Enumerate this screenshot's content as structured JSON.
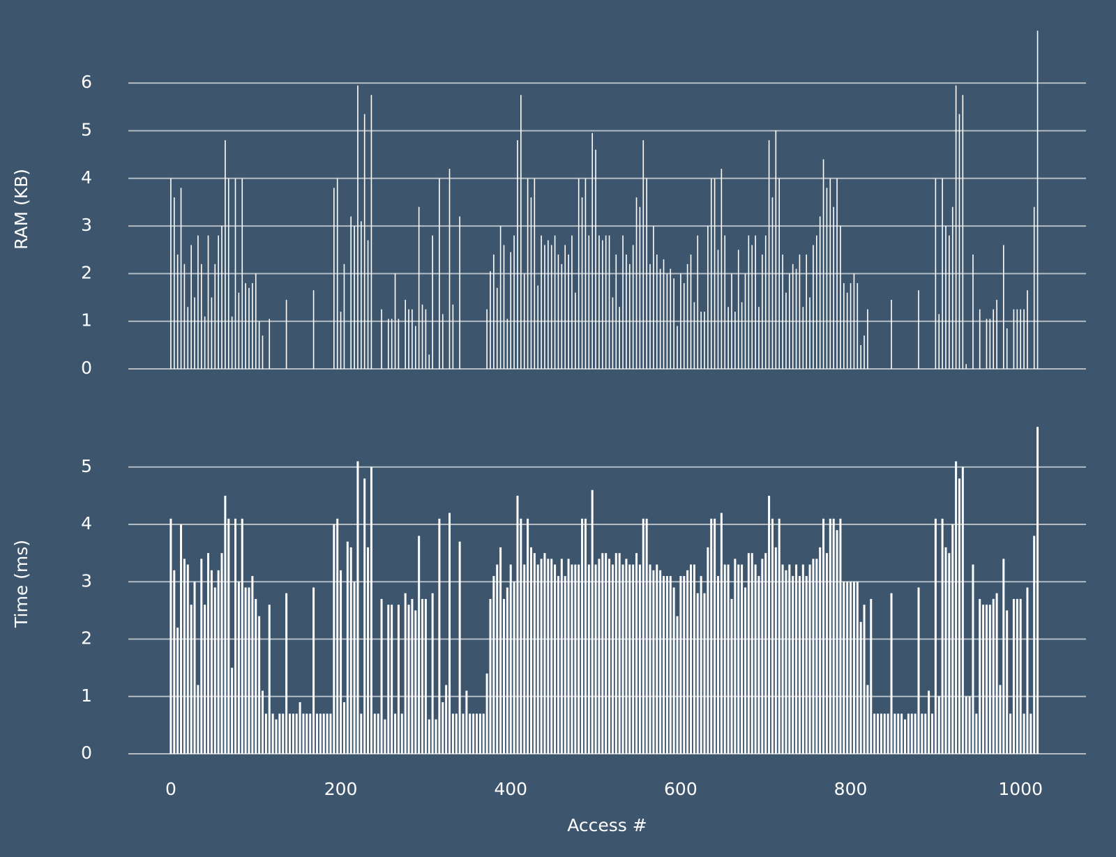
{
  "chart_data": [
    {
      "type": "bar",
      "ylabel": "RAM (KB)",
      "color": "#ffffff",
      "grid": true,
      "xlim": [
        -50,
        1077
      ],
      "ylim": [
        0,
        7.1
      ],
      "yticks": [
        0,
        1,
        2,
        3,
        4,
        5,
        6
      ],
      "x": [
        0,
        4,
        8,
        12,
        16,
        20,
        24,
        28,
        32,
        36,
        40,
        44,
        48,
        52,
        56,
        60,
        64,
        68,
        72,
        76,
        80,
        84,
        88,
        92,
        96,
        100,
        104,
        108,
        112,
        116,
        120,
        124,
        128,
        132,
        136,
        140,
        144,
        148,
        152,
        156,
        160,
        164,
        168,
        172,
        176,
        180,
        184,
        188,
        192,
        196,
        200,
        204,
        208,
        212,
        216,
        220,
        224,
        228,
        232,
        236,
        240,
        244,
        248,
        252,
        256,
        260,
        264,
        268,
        272,
        276,
        280,
        284,
        288,
        292,
        296,
        300,
        304,
        308,
        312,
        316,
        320,
        324,
        328,
        332,
        336,
        340,
        344,
        348,
        352,
        356,
        360,
        364,
        368,
        372,
        376,
        380,
        384,
        388,
        392,
        396,
        400,
        404,
        408,
        412,
        416,
        420,
        424,
        428,
        432,
        436,
        440,
        444,
        448,
        452,
        456,
        460,
        464,
        468,
        472,
        476,
        480,
        484,
        488,
        492,
        496,
        500,
        504,
        508,
        512,
        516,
        520,
        524,
        528,
        532,
        536,
        540,
        544,
        548,
        552,
        556,
        560,
        564,
        568,
        572,
        576,
        580,
        584,
        588,
        592,
        596,
        600,
        604,
        608,
        612,
        616,
        620,
        624,
        628,
        632,
        636,
        640,
        644,
        648,
        652,
        656,
        660,
        664,
        668,
        672,
        676,
        680,
        684,
        688,
        692,
        696,
        700,
        704,
        708,
        712,
        716,
        720,
        724,
        728,
        732,
        736,
        740,
        744,
        748,
        752,
        756,
        760,
        764,
        768,
        772,
        776,
        780,
        784,
        788,
        792,
        796,
        800,
        804,
        808,
        812,
        816,
        820,
        824,
        828,
        832,
        836,
        840,
        844,
        848,
        852,
        856,
        860,
        864,
        868,
        872,
        876,
        880,
        884,
        888,
        892,
        896,
        900,
        904,
        908,
        912,
        916,
        920,
        924,
        928,
        932,
        936,
        940,
        944,
        948,
        952,
        956,
        960,
        964,
        968,
        972,
        976,
        980,
        984,
        988,
        992,
        996,
        1000,
        1004,
        1008,
        1012,
        1016,
        1020
      ],
      "values": [
        4.0,
        3.6,
        2.4,
        3.8,
        2.2,
        1.3,
        2.6,
        1.5,
        2.8,
        2.2,
        1.1,
        2.8,
        1.5,
        2.2,
        2.8,
        3.0,
        4.8,
        4.0,
        1.1,
        4.0,
        1.6,
        4.0,
        1.8,
        1.7,
        1.8,
        2.0,
        1.0,
        0.7,
        0,
        1.05,
        0,
        0,
        0,
        0,
        1.45,
        0,
        0,
        0,
        0,
        0,
        0,
        0,
        1.65,
        0,
        0,
        0,
        0,
        0,
        3.8,
        4.0,
        1.2,
        2.2,
        0,
        3.2,
        3.0,
        5.95,
        3.1,
        5.35,
        2.7,
        5.75,
        0,
        0,
        1.25,
        0,
        1.05,
        1.05,
        2.0,
        1.05,
        0,
        1.45,
        1.25,
        1.25,
        0.9,
        3.4,
        1.35,
        1.25,
        0.3,
        2.8,
        0,
        4.0,
        1.15,
        0,
        4.2,
        1.35,
        0,
        3.2,
        0,
        0,
        0,
        0,
        0,
        0,
        0,
        1.25,
        2.05,
        2.4,
        1.7,
        3.0,
        2.6,
        1.05,
        2.45,
        2.8,
        4.8,
        5.75,
        2.0,
        4.0,
        3.6,
        4.0,
        1.75,
        2.8,
        2.6,
        2.7,
        2.6,
        2.8,
        2.4,
        2.2,
        2.6,
        2.4,
        2.8,
        1.6,
        4.0,
        3.6,
        4.0,
        2.8,
        4.95,
        4.6,
        2.8,
        2.7,
        2.8,
        2.8,
        1.5,
        2.4,
        1.3,
        2.8,
        2.4,
        2.2,
        2.6,
        3.6,
        3.4,
        4.8,
        4.0,
        2.2,
        3.0,
        2.4,
        2.1,
        2.3,
        2.0,
        2.1,
        1.9,
        0.9,
        2.0,
        1.8,
        2.2,
        2.4,
        1.4,
        2.8,
        1.2,
        1.2,
        3.0,
        4.0,
        4.0,
        2.5,
        4.2,
        2.8,
        1.3,
        2.0,
        1.2,
        2.5,
        1.4,
        2.0,
        2.8,
        2.6,
        2.8,
        1.3,
        2.4,
        2.8,
        4.8,
        3.6,
        5.0,
        4.0,
        2.4,
        1.6,
        2.0,
        2.2,
        2.1,
        2.4,
        1.3,
        2.4,
        1.5,
        2.6,
        2.8,
        3.2,
        4.4,
        3.8,
        4.0,
        3.4,
        4.0,
        3.0,
        1.8,
        1.6,
        1.8,
        2.0,
        1.8,
        0.5,
        0.7,
        1.25,
        0,
        0,
        0,
        0,
        0,
        0,
        1.45,
        0,
        0,
        0,
        0,
        0,
        0,
        0,
        1.65,
        0,
        0,
        0,
        0,
        4.0,
        1.15,
        4.0,
        3.0,
        2.8,
        3.4,
        5.95,
        5.35,
        5.75,
        0.1,
        0,
        2.4,
        0,
        1.25,
        0,
        1.05,
        1.05,
        1.25,
        1.45,
        0,
        2.6,
        0.85,
        0,
        1.25,
        1.25,
        1.25,
        1.25,
        1.65,
        0,
        3.4,
        7.1
      ]
    },
    {
      "type": "bar",
      "ylabel": "Time (ms)",
      "xlabel": "Access #",
      "color": "#ffffff",
      "grid": true,
      "xlim": [
        -50,
        1077
      ],
      "xticks": [
        0,
        200,
        400,
        600,
        800,
        1000
      ],
      "ylim": [
        0,
        5.8
      ],
      "yticks": [
        0,
        1,
        2,
        3,
        4,
        5
      ],
      "x": [
        0,
        4,
        8,
        12,
        16,
        20,
        24,
        28,
        32,
        36,
        40,
        44,
        48,
        52,
        56,
        60,
        64,
        68,
        72,
        76,
        80,
        84,
        88,
        92,
        96,
        100,
        104,
        108,
        112,
        116,
        120,
        124,
        128,
        132,
        136,
        140,
        144,
        148,
        152,
        156,
        160,
        164,
        168,
        172,
        176,
        180,
        184,
        188,
        192,
        196,
        200,
        204,
        208,
        212,
        216,
        220,
        224,
        228,
        232,
        236,
        240,
        244,
        248,
        252,
        256,
        260,
        264,
        268,
        272,
        276,
        280,
        284,
        288,
        292,
        296,
        300,
        304,
        308,
        312,
        316,
        320,
        324,
        328,
        332,
        336,
        340,
        344,
        348,
        352,
        356,
        360,
        364,
        368,
        372,
        376,
        380,
        384,
        388,
        392,
        396,
        400,
        404,
        408,
        412,
        416,
        420,
        424,
        428,
        432,
        436,
        440,
        444,
        448,
        452,
        456,
        460,
        464,
        468,
        472,
        476,
        480,
        484,
        488,
        492,
        496,
        500,
        504,
        508,
        512,
        516,
        520,
        524,
        528,
        532,
        536,
        540,
        544,
        548,
        552,
        556,
        560,
        564,
        568,
        572,
        576,
        580,
        584,
        588,
        592,
        596,
        600,
        604,
        608,
        612,
        616,
        620,
        624,
        628,
        632,
        636,
        640,
        644,
        648,
        652,
        656,
        660,
        664,
        668,
        672,
        676,
        680,
        684,
        688,
        692,
        696,
        700,
        704,
        708,
        712,
        716,
        720,
        724,
        728,
        732,
        736,
        740,
        744,
        748,
        752,
        756,
        760,
        764,
        768,
        772,
        776,
        780,
        784,
        788,
        792,
        796,
        800,
        804,
        808,
        812,
        816,
        820,
        824,
        828,
        832,
        836,
        840,
        844,
        848,
        852,
        856,
        860,
        864,
        868,
        872,
        876,
        880,
        884,
        888,
        892,
        896,
        900,
        904,
        908,
        912,
        916,
        920,
        924,
        928,
        932,
        936,
        940,
        944,
        948,
        952,
        956,
        960,
        964,
        968,
        972,
        976,
        980,
        984,
        988,
        992,
        996,
        1000,
        1004,
        1008,
        1012,
        1016,
        1020
      ],
      "values": [
        4.1,
        3.2,
        2.2,
        4.0,
        3.4,
        3.3,
        2.6,
        3.0,
        1.2,
        3.4,
        2.6,
        3.5,
        3.2,
        2.9,
        3.2,
        3.5,
        4.5,
        4.1,
        1.5,
        4.1,
        3.0,
        4.1,
        2.9,
        2.9,
        3.1,
        2.7,
        2.4,
        1.1,
        0.7,
        2.6,
        0.7,
        0.6,
        0.7,
        0.7,
        2.8,
        0.7,
        0.7,
        0.7,
        0.9,
        0.7,
        0.7,
        0.7,
        2.9,
        0.7,
        0.7,
        0.7,
        0.7,
        0.7,
        4.0,
        4.1,
        3.2,
        0.9,
        3.7,
        3.6,
        3.0,
        5.1,
        0.7,
        4.8,
        3.6,
        5.0,
        0.7,
        0.7,
        2.7,
        0.6,
        2.6,
        2.6,
        0.7,
        2.6,
        0.7,
        2.8,
        2.6,
        2.7,
        2.5,
        3.8,
        2.7,
        2.7,
        0.6,
        2.8,
        0.6,
        4.1,
        0.9,
        1.2,
        4.2,
        0.7,
        0.7,
        3.7,
        0.7,
        1.1,
        0.7,
        0.7,
        0.7,
        0.7,
        0.7,
        1.4,
        2.7,
        3.1,
        3.3,
        3.6,
        2.7,
        2.9,
        3.3,
        3.0,
        4.5,
        4.1,
        3.3,
        4.1,
        3.6,
        3.5,
        3.3,
        3.4,
        3.5,
        3.4,
        3.4,
        3.3,
        3.1,
        3.4,
        3.1,
        3.4,
        3.3,
        3.3,
        3.3,
        4.1,
        4.1,
        3.3,
        4.6,
        3.3,
        3.4,
        3.5,
        3.5,
        3.4,
        3.3,
        3.5,
        3.5,
        3.3,
        3.4,
        3.3,
        3.3,
        3.5,
        3.3,
        4.1,
        4.1,
        3.3,
        3.2,
        3.3,
        3.2,
        3.1,
        3.1,
        3.1,
        2.9,
        2.4,
        3.1,
        3.1,
        3.2,
        3.3,
        3.3,
        2.8,
        3.1,
        2.8,
        3.6,
        4.1,
        4.1,
        3.1,
        4.2,
        3.3,
        3.3,
        2.7,
        3.4,
        3.3,
        3.3,
        2.9,
        3.5,
        3.5,
        3.3,
        3.1,
        3.4,
        3.5,
        4.5,
        4.1,
        3.6,
        4.1,
        3.3,
        3.2,
        3.3,
        3.1,
        3.3,
        3.1,
        3.3,
        3.1,
        3.3,
        3.4,
        3.4,
        3.6,
        4.1,
        3.5,
        4.1,
        4.1,
        3.9,
        4.1,
        3.0,
        3.0,
        3.0,
        3.0,
        3.0,
        2.3,
        2.6,
        1.2,
        2.7,
        0.7,
        0.7,
        0.7,
        0.7,
        0.7,
        2.8,
        0.7,
        0.7,
        0.7,
        0.6,
        0.7,
        0.7,
        0.7,
        2.9,
        0.7,
        0.7,
        1.1,
        0.7,
        4.1,
        1.0,
        4.1,
        3.6,
        3.5,
        4.0,
        5.1,
        4.8,
        5.0,
        1.0,
        1.0,
        3.3,
        0.7,
        2.7,
        2.6,
        2.6,
        2.6,
        2.7,
        2.8,
        1.2,
        3.4,
        2.5,
        0.7,
        2.7,
        2.7,
        2.7,
        0.7,
        2.9,
        0.7,
        3.8,
        5.7
      ]
    }
  ]
}
